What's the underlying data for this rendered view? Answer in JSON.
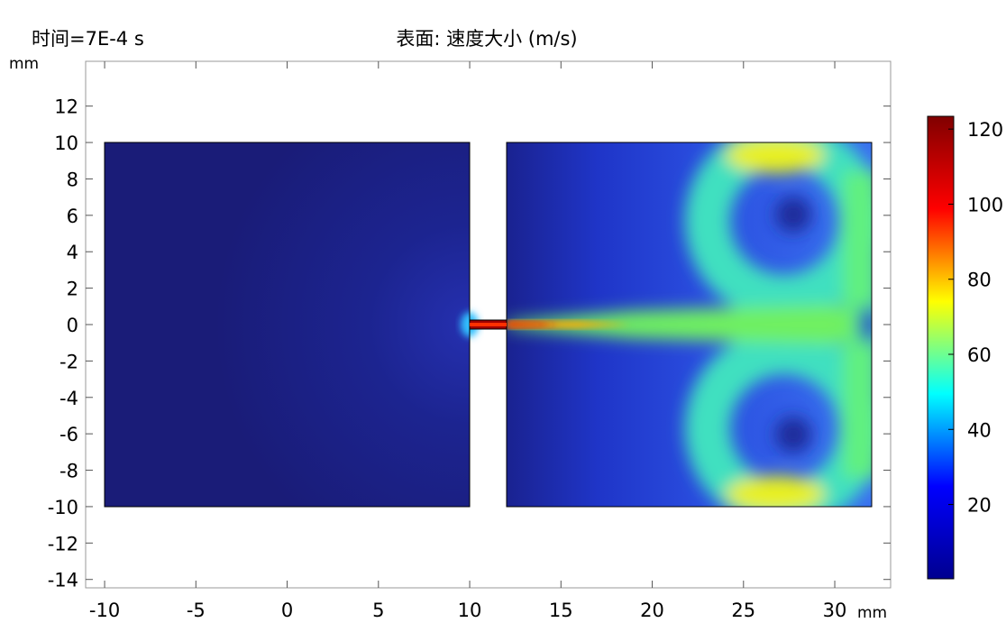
{
  "chart_data": {
    "type": "surface",
    "title": "表面: 速度大小 (m/s)",
    "subtitle": "时间=7E-4 s",
    "xlabel": "mm",
    "ylabel": "mm",
    "xlim": [
      -11.04,
      33.06
    ],
    "xticks": [
      -10,
      -5,
      0,
      5,
      10,
      15,
      20,
      25,
      30
    ],
    "ylim": [
      -14.46,
      14.46
    ],
    "yticks": [
      -14,
      -12,
      -10,
      -8,
      -6,
      -4,
      -2,
      0,
      2,
      4,
      6,
      8,
      10,
      12
    ],
    "clim": [
      0.2,
      123.4
    ],
    "cticks": [
      20,
      40,
      60,
      80,
      100,
      120
    ],
    "colormap": [
      "#00008f",
      "#0000ff",
      "#00ffff",
      "#ffff00",
      "#ff0000",
      "#800000"
    ]
  }
}
